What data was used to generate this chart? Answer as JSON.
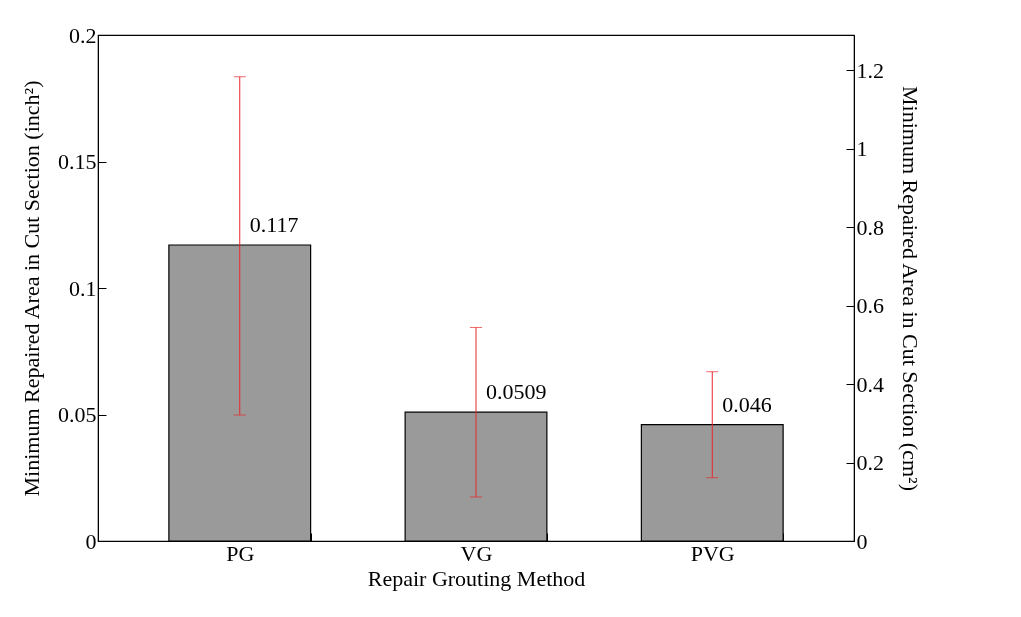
{
  "chart_data": {
    "type": "bar",
    "xlabel": "Repair Grouting Method",
    "ylabel": "Minimum Repaired Area in Cut Section (inch²)",
    "y2label": "Minimum Repaired Area in Cut Section (cm²)",
    "categories": [
      "PG",
      "VG",
      "PVG"
    ],
    "values": [
      0.117,
      0.0509,
      0.046
    ],
    "errors": [
      [
        0.0498,
        0.1835
      ],
      [
        0.0174,
        0.0844
      ],
      [
        0.025,
        0.0669
      ]
    ],
    "color": "#9a9a9a",
    "data_labels": true,
    "ylim": [
      0,
      0.2
    ],
    "yticks": [
      0,
      0.05,
      0.1,
      0.15,
      0.2
    ],
    "y2lim": [
      0,
      1.29
    ],
    "y2ticks": [
      0,
      0.2,
      0.4,
      0.6,
      0.8,
      1,
      1.2
    ],
    "grid": false
  }
}
